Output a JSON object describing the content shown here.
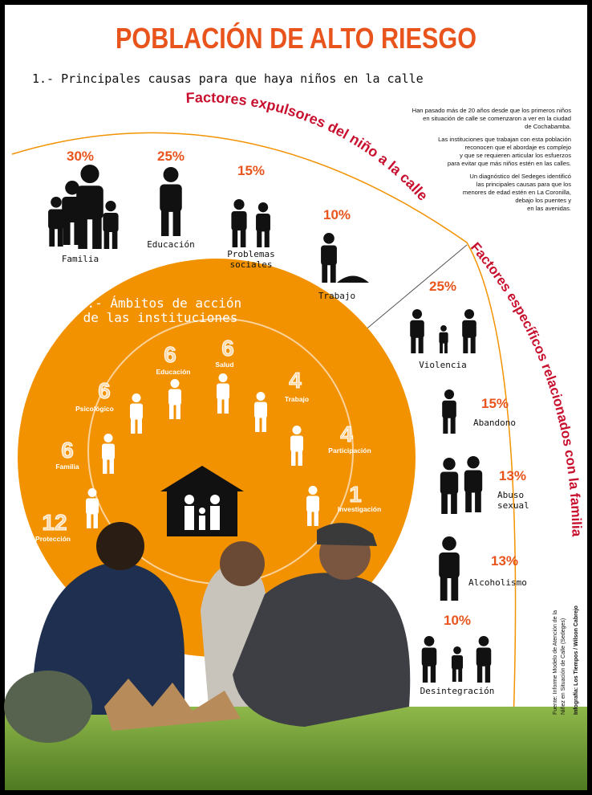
{
  "title": "POBLACIÓN DE ALTO RIESGO",
  "section1": {
    "heading": "1.- Principales causas para que haya niños en la calle",
    "arc_title": "Factores expulsores del niño a la calle",
    "items": [
      {
        "percent": "30%",
        "label": [
          "Familia"
        ]
      },
      {
        "percent": "25%",
        "label": [
          "Educación"
        ]
      },
      {
        "percent": "15%",
        "label": [
          "Problemas",
          "sociales"
        ]
      },
      {
        "percent": "10%",
        "label": [
          "Trabajo"
        ]
      }
    ]
  },
  "intro": [
    [
      "Han pasado más de 20 años desde que los primeros niños",
      "en situación de calle se comenzaron a ver en la ciudad",
      "de Cochabamba."
    ],
    [
      "Las instituciones que trabajan con esta población",
      "reconocen que el abordaje es complejo",
      "y que se requieren articular los esfuerzos",
      "para evitar que más niños estén en las calles."
    ],
    [
      "Un diagnóstico del Sedeges identificó",
      "las principales causas para que los",
      "menores de edad estén en La Coronilla,",
      "debajo los puentes y",
      "en las avenidas."
    ]
  ],
  "family_factors": {
    "arc_title": "Factores específicos relacionados con la familia",
    "items": [
      {
        "percent": "25%",
        "label": [
          "Violencia"
        ]
      },
      {
        "percent": "15%",
        "label": [
          "Abandono"
        ]
      },
      {
        "percent": "13%",
        "label": [
          "Abuso",
          "sexual"
        ]
      },
      {
        "percent": "13%",
        "label": [
          "Alcoholismo"
        ]
      },
      {
        "percent": "10%",
        "label": [
          "Desintegración"
        ]
      }
    ]
  },
  "section2": {
    "heading": [
      "2.- Ámbitos de acción",
      "de las instituciones"
    ],
    "items": [
      {
        "label": "Psicológico",
        "count": "6"
      },
      {
        "label": "Educación",
        "count": "6"
      },
      {
        "label": "Salud",
        "count": "6"
      },
      {
        "label": "Trabajo",
        "count": "4"
      },
      {
        "label": "Participación",
        "count": "4"
      },
      {
        "label": "Investigación",
        "count": "1"
      },
      {
        "label": "Protección",
        "count": "12"
      },
      {
        "label": "Familia",
        "count": "6"
      }
    ]
  },
  "credits": [
    "Fuente: Informe Modelo de Atención de la",
    "Niñez en Situación de Calle (Sedeges)",
    "Infografía: Los Tiempos / Wilson Cabrejo"
  ]
}
